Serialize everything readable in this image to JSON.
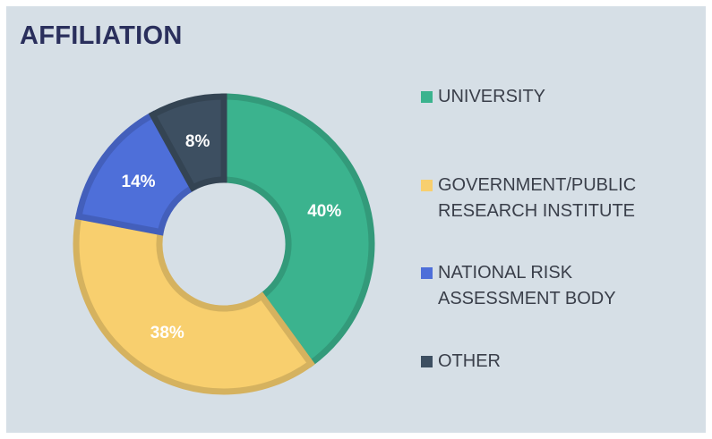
{
  "chart_data": {
    "type": "donut",
    "title": "AFFILIATION",
    "categories": [
      "UNIVERSITY",
      "GOVERNMENT/PUBLIC RESEARCH INSTITUTE",
      "NATIONAL RISK ASSESSMENT BODY",
      "OTHER"
    ],
    "values": [
      40,
      38,
      14,
      8
    ],
    "value_labels": [
      "40%",
      "38%",
      "14%",
      "8%"
    ],
    "colors": [
      "#3bb38e",
      "#f8cf6e",
      "#4e6fd9",
      "#3d4f61"
    ],
    "legend": "right"
  }
}
